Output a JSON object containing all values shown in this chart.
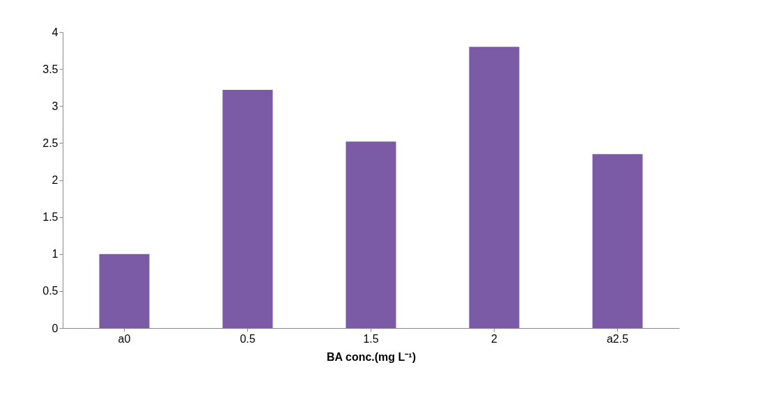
{
  "chart_data": {
    "type": "bar",
    "xlabel": "BA conc.(mg L⁻¹)",
    "categories": [
      "a0",
      "0.5",
      "1.5",
      "2",
      "a2.5"
    ],
    "values": [
      1.0,
      3.22,
      2.52,
      3.8,
      2.35
    ],
    "color": "#7b5aa6",
    "ylim": [
      0,
      4
    ],
    "yticks": [
      0,
      0.5,
      1,
      1.5,
      2,
      2.5,
      3,
      3.5,
      4
    ],
    "grid": false
  }
}
